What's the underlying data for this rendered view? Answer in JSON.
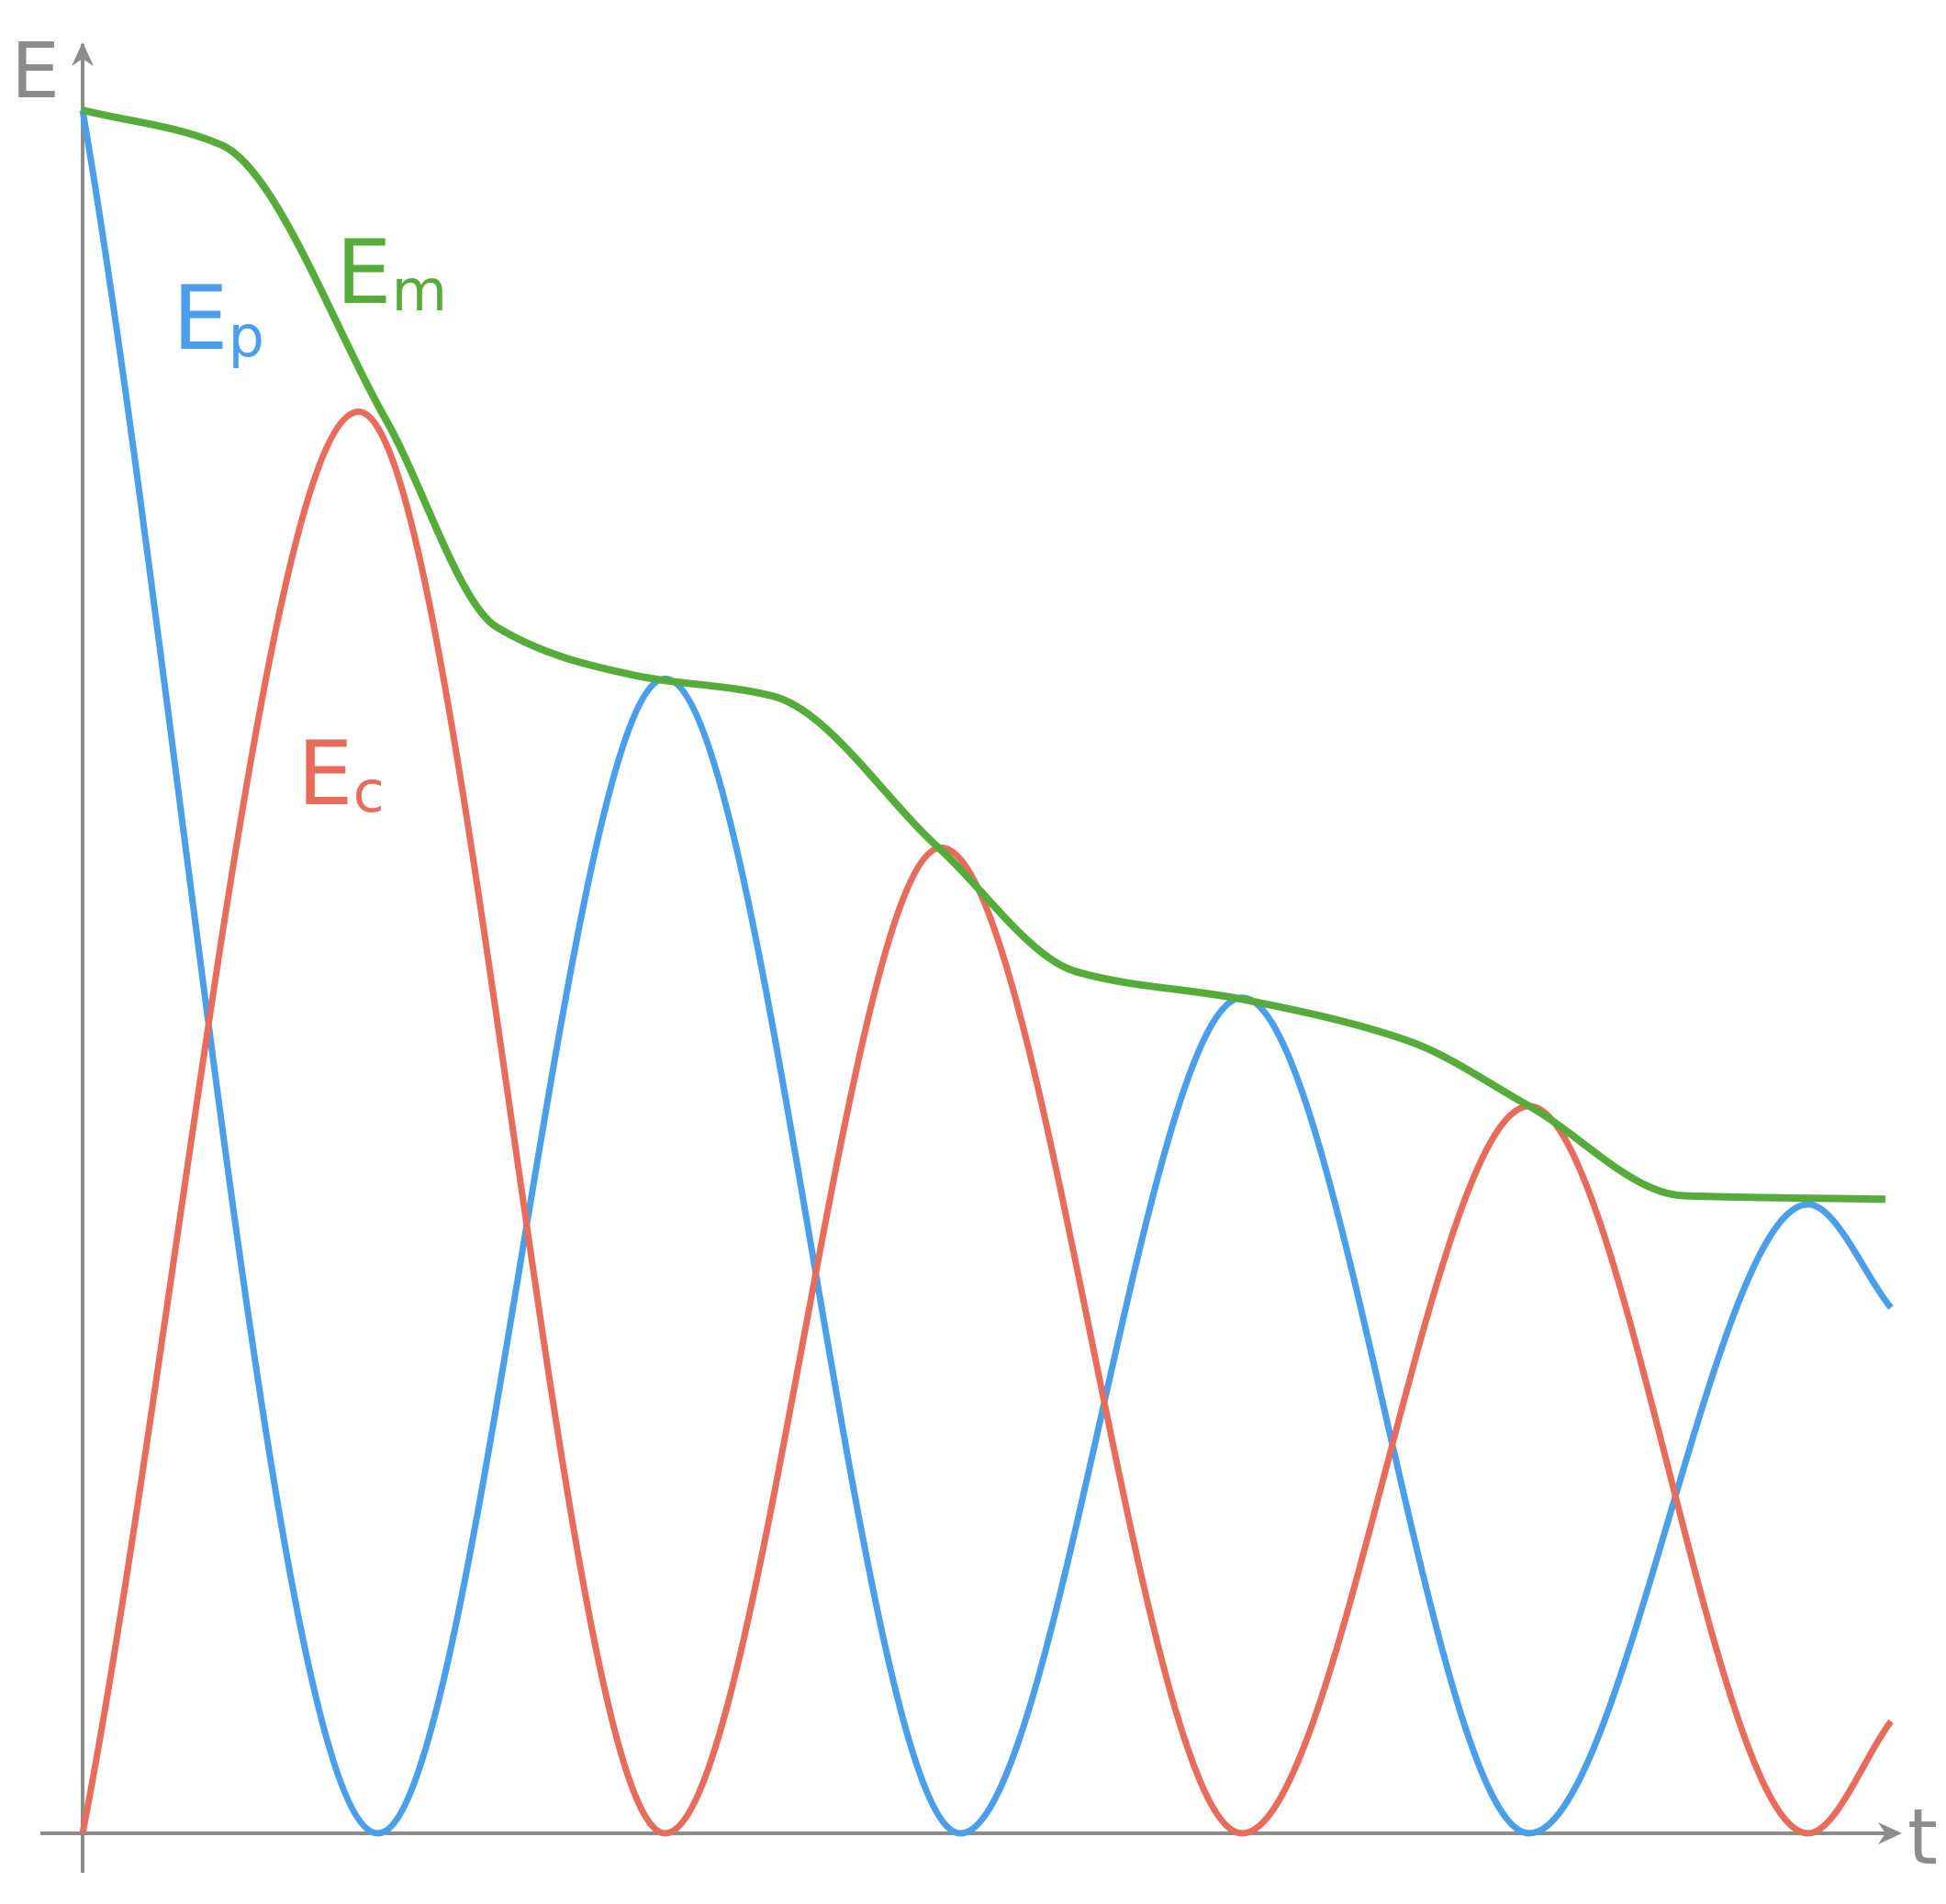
{
  "chart_data": {
    "type": "line",
    "title": "",
    "xlabel": "t",
    "ylabel": "E",
    "xlim": [
      0,
      6.55
    ],
    "ylim": [
      0,
      1
    ],
    "grid": false,
    "legend": "inline labels",
    "axis_color": "#8c8c8c",
    "series": [
      {
        "name": "Ep",
        "color": "#4a9eea",
        "x": [
          0,
          1.07,
          2.11,
          3.18,
          4.2,
          5.24,
          6.25,
          6.55
        ],
        "y": [
          1.0,
          0.0,
          0.67,
          0.0,
          0.485,
          0.0,
          0.365,
          0.305
        ]
      },
      {
        "name": "Ec",
        "color": "#e86c5b",
        "x": [
          0,
          1.0,
          2.11,
          3.11,
          4.2,
          5.24,
          6.25,
          6.55
        ],
        "y": [
          0.0,
          0.825,
          0.0,
          0.572,
          0.0,
          0.422,
          0.0,
          0.065
        ]
      },
      {
        "name": "Em",
        "color": "#55ac3b",
        "x": [
          0,
          0.5,
          1.1,
          1.5,
          2.0,
          2.5,
          3.1,
          3.6,
          4.2,
          4.8,
          5.24,
          5.8,
          6.53
        ],
        "y": [
          1.0,
          0.98,
          0.82,
          0.7,
          0.672,
          0.66,
          0.572,
          0.5,
          0.484,
          0.46,
          0.422,
          0.37,
          0.368
        ]
      }
    ],
    "label_text": {
      "Ep": {
        "main": "E",
        "sub": "p"
      },
      "Em": {
        "main": "E",
        "sub": "m"
      },
      "Ec": {
        "main": "E",
        "sub": "c"
      }
    }
  }
}
